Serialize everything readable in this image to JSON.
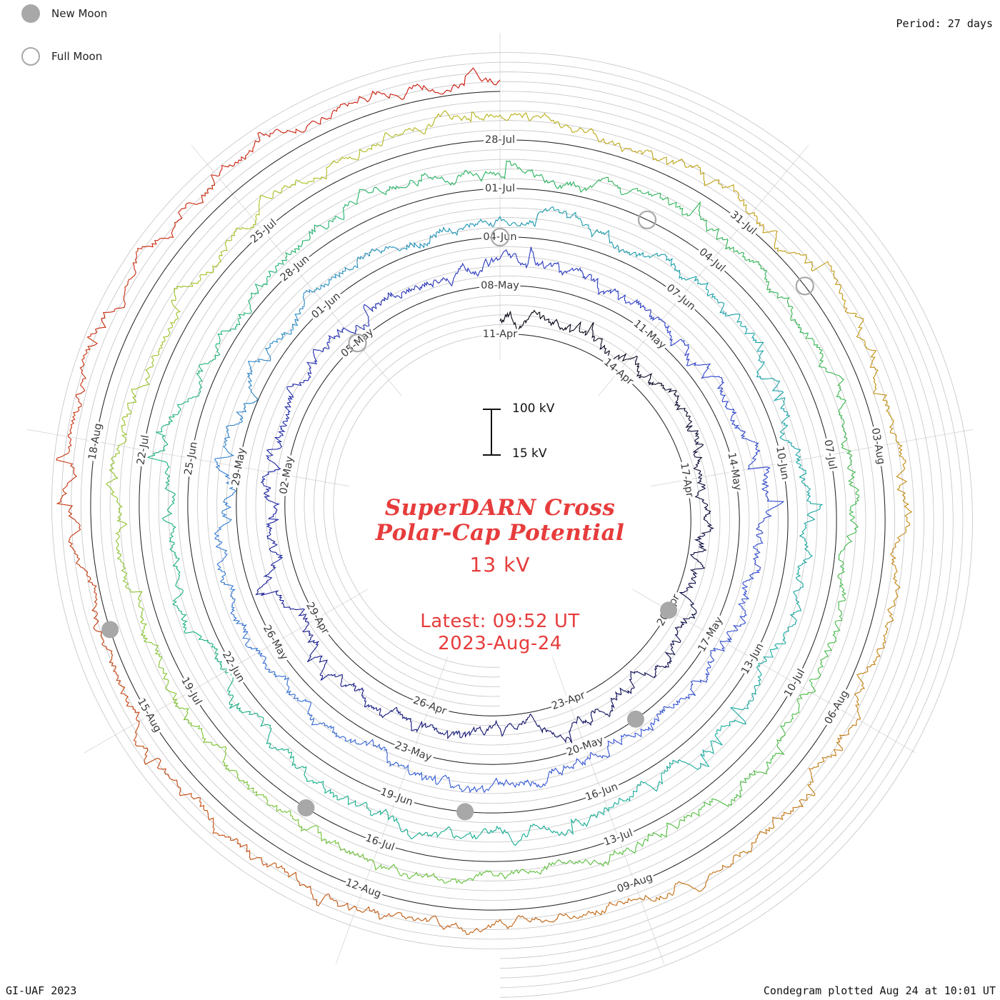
{
  "legend": {
    "new_moon": "New Moon",
    "full_moon": "Full Moon"
  },
  "header": {
    "period": "Period: 27 days"
  },
  "footer": {
    "credit": "GI-UAF 2023",
    "plotted": "Condegram plotted Aug 24 at 10:01 UT"
  },
  "center": {
    "title_line1": "SuperDARN Cross",
    "title_line2": "Polar-Cap Potential",
    "value": "13 kV",
    "latest_line1": "Latest: 09:52 UT",
    "latest_line2": "2023-Aug-24"
  },
  "scale": {
    "top_label": "100 kV",
    "bottom_label": "15 kV"
  },
  "colors": {
    "accent": "#e73c3c",
    "moon": "#a8a8a8"
  },
  "chart_data": {
    "type": "line",
    "subtype": "spiral_condegram",
    "title": "SuperDARN Cross Polar-Cap Potential",
    "units": "kV",
    "start_date": "2023-04-11",
    "end_date": "2023-08-24",
    "period_days": 27,
    "total_days": 135,
    "latest_value_kv": 13,
    "latest_time": "09:52 UT 2023-Aug-24",
    "scale_reference_kv": [
      15,
      100
    ],
    "date_labels": [
      {
        "day": 0,
        "label": "11-Apr"
      },
      {
        "day": 3,
        "label": "14-Apr"
      },
      {
        "day": 6,
        "label": "17-Apr"
      },
      {
        "day": 9,
        "label": "20-Apr"
      },
      {
        "day": 12,
        "label": "23-Apr"
      },
      {
        "day": 15,
        "label": "26-Apr"
      },
      {
        "day": 18,
        "label": "29-Apr"
      },
      {
        "day": 21,
        "label": "02-May"
      },
      {
        "day": 24,
        "label": "05-May"
      },
      {
        "day": 27,
        "label": "08-May"
      },
      {
        "day": 30,
        "label": "11-May"
      },
      {
        "day": 33,
        "label": "14-May"
      },
      {
        "day": 36,
        "label": "17-May"
      },
      {
        "day": 39,
        "label": "20-May"
      },
      {
        "day": 42,
        "label": "23-May"
      },
      {
        "day": 45,
        "label": "26-May"
      },
      {
        "day": 48,
        "label": "29-May"
      },
      {
        "day": 51,
        "label": "01-Jun"
      },
      {
        "day": 54,
        "label": "04-Jun"
      },
      {
        "day": 57,
        "label": "07-Jun"
      },
      {
        "day": 60,
        "label": "10-Jun"
      },
      {
        "day": 63,
        "label": "13-Jun"
      },
      {
        "day": 66,
        "label": "16-Jun"
      },
      {
        "day": 69,
        "label": "19-Jun"
      },
      {
        "day": 72,
        "label": "22-Jun"
      },
      {
        "day": 75,
        "label": "25-Jun"
      },
      {
        "day": 78,
        "label": "28-Jun"
      },
      {
        "day": 81,
        "label": "01-Jul"
      },
      {
        "day": 84,
        "label": "04-Jul"
      },
      {
        "day": 87,
        "label": "07-Jul"
      },
      {
        "day": 90,
        "label": "10-Jul"
      },
      {
        "day": 93,
        "label": "13-Jul"
      },
      {
        "day": 96,
        "label": "16-Jul"
      },
      {
        "day": 99,
        "label": "19-Jul"
      },
      {
        "day": 102,
        "label": "22-Jul"
      },
      {
        "day": 105,
        "label": "25-Jul"
      },
      {
        "day": 108,
        "label": "28-Jul"
      },
      {
        "day": 111,
        "label": "31-Jul"
      },
      {
        "day": 114,
        "label": "03-Aug"
      },
      {
        "day": 117,
        "label": "06-Aug"
      },
      {
        "day": 120,
        "label": "09-Aug"
      },
      {
        "day": 123,
        "label": "12-Aug"
      },
      {
        "day": 126,
        "label": "15-Aug"
      },
      {
        "day": 129,
        "label": "18-Aug"
      }
    ],
    "new_moon_days": [
      9,
      38,
      68,
      97,
      127
    ],
    "full_moon_days": [
      24,
      54,
      83,
      112
    ],
    "color_stops": [
      [
        0,
        "#000008"
      ],
      [
        10,
        "#0a0a50"
      ],
      [
        20,
        "#1a22a0"
      ],
      [
        30,
        "#2a3ec8"
      ],
      [
        40,
        "#3355d2"
      ],
      [
        48,
        "#2f7fd0"
      ],
      [
        55,
        "#179aac"
      ],
      [
        65,
        "#14ab9a"
      ],
      [
        75,
        "#18b07a"
      ],
      [
        83,
        "#2cb357"
      ],
      [
        92,
        "#4dbb3f"
      ],
      [
        100,
        "#85c32c"
      ],
      [
        106,
        "#aebc1c"
      ],
      [
        110,
        "#bfa312"
      ],
      [
        116,
        "#c2810e"
      ],
      [
        122,
        "#c05c0e"
      ],
      [
        128,
        "#c4360c"
      ],
      [
        135,
        "#cc0f06"
      ]
    ],
    "daily_mean_kv": [
      30,
      35,
      28,
      28,
      42,
      38,
      30,
      26,
      24,
      45,
      55,
      40,
      32,
      30,
      28,
      34,
      48,
      36,
      30,
      26,
      24,
      30,
      44,
      38,
      30,
      28,
      35,
      46,
      40,
      34,
      30,
      28,
      28,
      38,
      50,
      44,
      36,
      30,
      26,
      30,
      42,
      36,
      32,
      30,
      44,
      52,
      40,
      34,
      30,
      28,
      30,
      36,
      30,
      26,
      28,
      40,
      48,
      38,
      32,
      28,
      26,
      34,
      44,
      38,
      32,
      28,
      30,
      42,
      52,
      40,
      34,
      30,
      28,
      36,
      46,
      38,
      30,
      28,
      32,
      44,
      38,
      30,
      28,
      34,
      46,
      52,
      40,
      32,
      28,
      26,
      32,
      42,
      36,
      30,
      28,
      34,
      44,
      38,
      30,
      28,
      36,
      48,
      40,
      32,
      28,
      30,
      42,
      54,
      44,
      36,
      30,
      28,
      34,
      46,
      40,
      32,
      28,
      32,
      44,
      52,
      42,
      34,
      30,
      36,
      46,
      38,
      32,
      28,
      34,
      44,
      54,
      42,
      34,
      28,
      24,
      14
    ]
  }
}
